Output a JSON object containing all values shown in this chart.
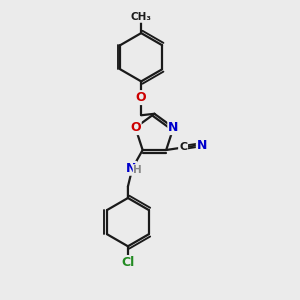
{
  "bg_color": "#ebebeb",
  "bond_color": "#1a1a1a",
  "bond_width": 1.6,
  "atom_colors": {
    "N": "#0000cc",
    "O": "#cc0000",
    "Cl": "#228B22",
    "C": "#1a1a1a"
  }
}
